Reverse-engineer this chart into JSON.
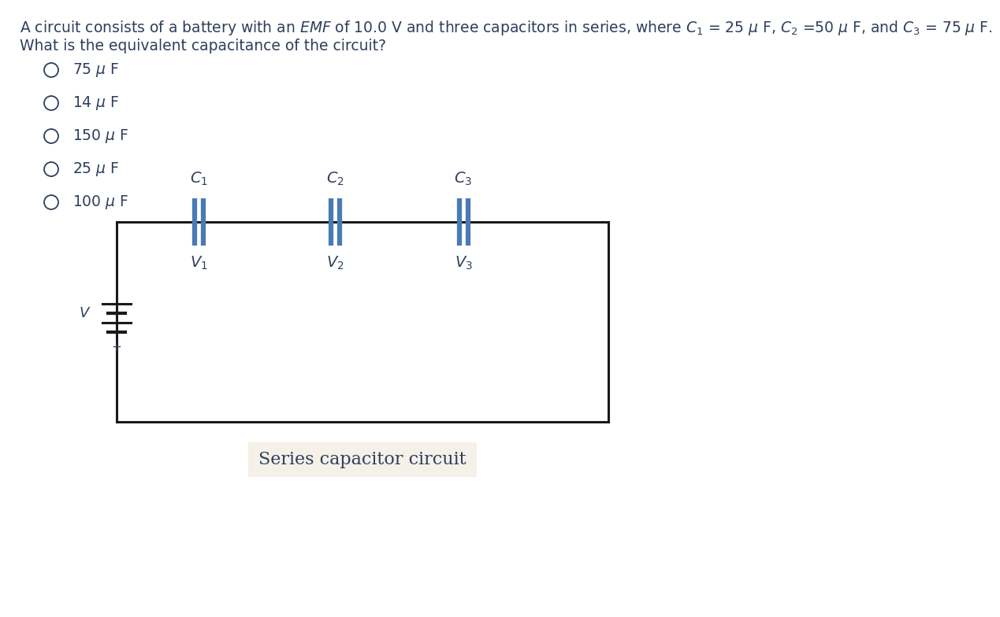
{
  "title_line1": "A circuit consists of a battery with an $\\it{EMF}$ of 10.0 V and three capacitors in series, where $C_1$ = 25 $\\mu$ F, $C_2$ =50 $\\mu$ F, and $C_3$ = 75 $\\mu$ F.",
  "title_line2": "What is the equivalent capacitance of the circuit?",
  "options": [
    "75 $\\mu$ F",
    "14 $\\mu$ F",
    "150 $\\mu$ F",
    "25 $\\mu$ F",
    "100 $\\mu$ F"
  ],
  "circuit_caption": "Series capacitor circuit",
  "text_color": "#2e3f5c",
  "bg_color": "#ffffff",
  "caption_bg": "#f5f0e8",
  "capacitor_color": "#4a7ab5",
  "wire_color": "#1a1a1a"
}
